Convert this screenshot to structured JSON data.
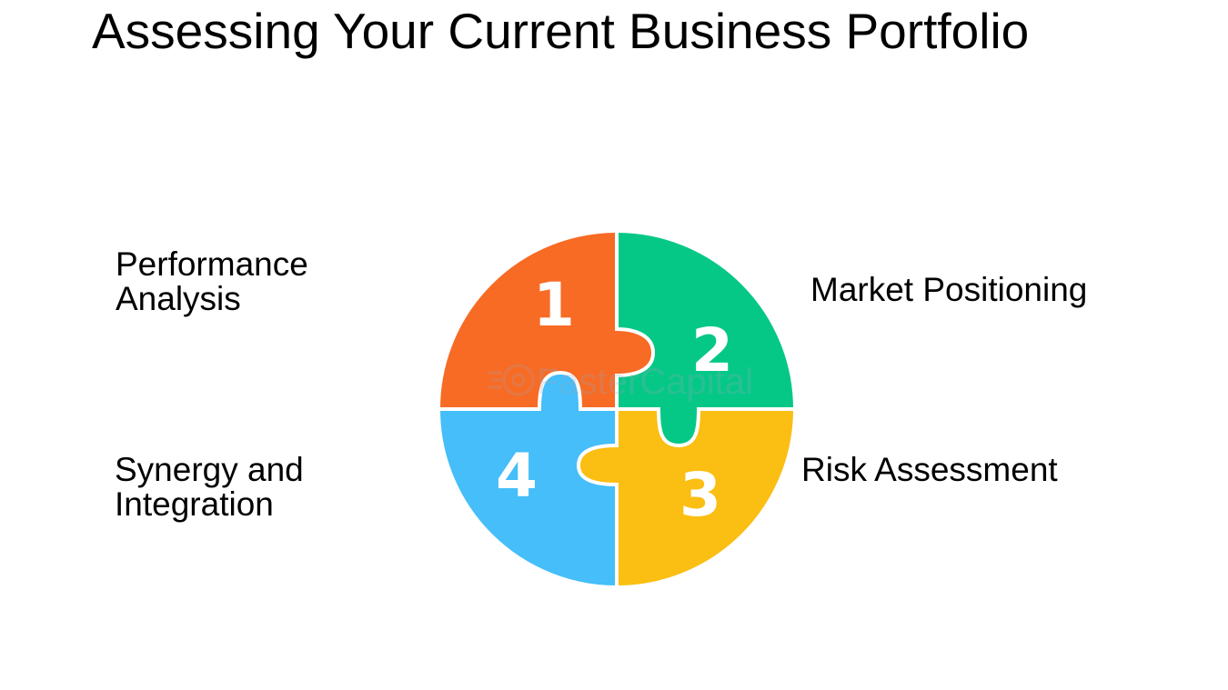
{
  "title": "Assessing Your Current Business Portfolio",
  "labels": {
    "performance": [
      "Performance",
      "Analysis"
    ],
    "market": "Market Positioning",
    "risk": "Risk Assessment",
    "synergy": [
      "Synergy and",
      "Integration"
    ]
  },
  "pieces": [
    {
      "number": "1",
      "color": "#F76B25"
    },
    {
      "number": "2",
      "color": "#05C887"
    },
    {
      "number": "3",
      "color": "#FBBE12"
    },
    {
      "number": "4",
      "color": "#45BEF9"
    }
  ],
  "watermark": "FasterCapital",
  "icons": {
    "watermark_logo": "gear-speed-icon"
  }
}
